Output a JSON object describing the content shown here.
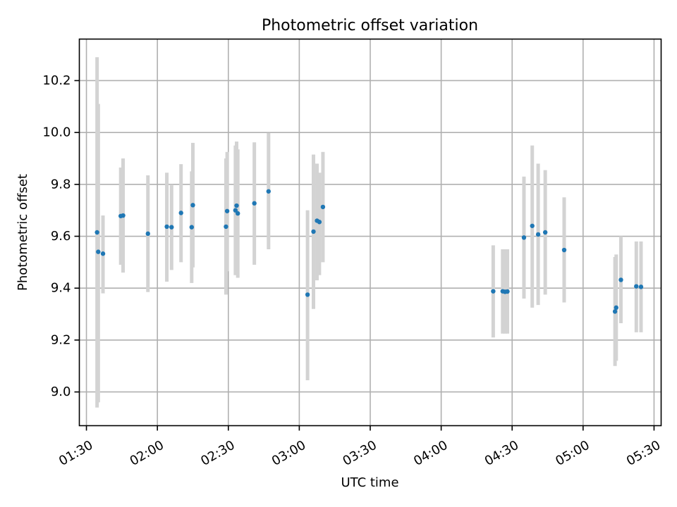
{
  "chart_data": {
    "type": "scatter",
    "title": "Photometric offset variation",
    "xlabel": "UTC time",
    "ylabel": "Photometric offset",
    "x_unit": "UTC clock time",
    "xlim": [
      "01:27",
      "05:33"
    ],
    "ylim": [
      8.87,
      10.36
    ],
    "xticks": [
      "01:30",
      "02:00",
      "02:30",
      "03:00",
      "03:30",
      "04:00",
      "04:30",
      "05:00",
      "05:30"
    ],
    "yticks": [
      "9.0",
      "9.2",
      "9.4",
      "9.6",
      "9.8",
      "10.0",
      "10.2"
    ],
    "grid": true,
    "marker_color": "#1f77b4",
    "errorbar_color": "#d3d3d3",
    "points": [
      {
        "x": "01:34:30",
        "y": 9.615,
        "err_lo": 8.94,
        "err_hi": 10.29
      },
      {
        "x": "01:35:00",
        "y": 9.54,
        "err_lo": 8.96,
        "err_hi": 10.11
      },
      {
        "x": "01:37:00",
        "y": 9.533,
        "err_lo": 9.38,
        "err_hi": 9.68
      },
      {
        "x": "01:44:30",
        "y": 9.678,
        "err_lo": 9.49,
        "err_hi": 9.865
      },
      {
        "x": "01:45:30",
        "y": 9.68,
        "err_lo": 9.46,
        "err_hi": 9.9
      },
      {
        "x": "01:56:00",
        "y": 9.61,
        "err_lo": 9.385,
        "err_hi": 9.835
      },
      {
        "x": "02:04:00",
        "y": 9.637,
        "err_lo": 9.425,
        "err_hi": 9.845
      },
      {
        "x": "02:06:00",
        "y": 9.635,
        "err_lo": 9.47,
        "err_hi": 9.8
      },
      {
        "x": "02:10:00",
        "y": 9.69,
        "err_lo": 9.5,
        "err_hi": 9.878
      },
      {
        "x": "02:14:30",
        "y": 9.635,
        "err_lo": 9.42,
        "err_hi": 9.85
      },
      {
        "x": "02:15:00",
        "y": 9.72,
        "err_lo": 9.48,
        "err_hi": 9.96
      },
      {
        "x": "02:29:00",
        "y": 9.637,
        "err_lo": 9.375,
        "err_hi": 9.9
      },
      {
        "x": "02:29:30",
        "y": 9.697,
        "err_lo": 9.465,
        "err_hi": 9.925
      },
      {
        "x": "02:33:00",
        "y": 9.7,
        "err_lo": 9.45,
        "err_hi": 9.95
      },
      {
        "x": "02:33:30",
        "y": 9.718,
        "err_lo": 9.47,
        "err_hi": 9.965
      },
      {
        "x": "02:34:00",
        "y": 9.688,
        "err_lo": 9.44,
        "err_hi": 9.935
      },
      {
        "x": "02:41:00",
        "y": 9.727,
        "err_lo": 9.49,
        "err_hi": 9.962
      },
      {
        "x": "02:47:00",
        "y": 9.773,
        "err_lo": 9.55,
        "err_hi": 9.998
      },
      {
        "x": "03:03:30",
        "y": 9.375,
        "err_lo": 9.045,
        "err_hi": 9.7
      },
      {
        "x": "03:06:00",
        "y": 9.618,
        "err_lo": 9.32,
        "err_hi": 9.915
      },
      {
        "x": "03:07:30",
        "y": 9.66,
        "err_lo": 9.43,
        "err_hi": 9.88
      },
      {
        "x": "03:08:30",
        "y": 9.655,
        "err_lo": 9.45,
        "err_hi": 9.845
      },
      {
        "x": "03:10:00",
        "y": 9.713,
        "err_lo": 9.5,
        "err_hi": 9.925
      },
      {
        "x": "04:22:00",
        "y": 9.388,
        "err_lo": 9.21,
        "err_hi": 9.565
      },
      {
        "x": "04:26:00",
        "y": 9.388,
        "err_lo": 9.225,
        "err_hi": 9.55
      },
      {
        "x": "04:27:00",
        "y": 9.386,
        "err_lo": 9.225,
        "err_hi": 9.55
      },
      {
        "x": "04:28:00",
        "y": 9.387,
        "err_lo": 9.225,
        "err_hi": 9.55
      },
      {
        "x": "04:35:00",
        "y": 9.595,
        "err_lo": 9.36,
        "err_hi": 9.83
      },
      {
        "x": "04:38:30",
        "y": 9.64,
        "err_lo": 9.325,
        "err_hi": 9.95
      },
      {
        "x": "04:41:00",
        "y": 9.607,
        "err_lo": 9.335,
        "err_hi": 9.88
      },
      {
        "x": "04:44:00",
        "y": 9.615,
        "err_lo": 9.375,
        "err_hi": 9.855
      },
      {
        "x": "04:52:00",
        "y": 9.547,
        "err_lo": 9.345,
        "err_hi": 9.75
      },
      {
        "x": "05:13:30",
        "y": 9.31,
        "err_lo": 9.1,
        "err_hi": 9.52
      },
      {
        "x": "05:14:00",
        "y": 9.325,
        "err_lo": 9.12,
        "err_hi": 9.53
      },
      {
        "x": "05:16:00",
        "y": 9.432,
        "err_lo": 9.265,
        "err_hi": 9.6
      },
      {
        "x": "05:22:30",
        "y": 9.407,
        "err_lo": 9.23,
        "err_hi": 9.58
      },
      {
        "x": "05:24:30",
        "y": 9.405,
        "err_lo": 9.23,
        "err_hi": 9.58
      }
    ]
  }
}
